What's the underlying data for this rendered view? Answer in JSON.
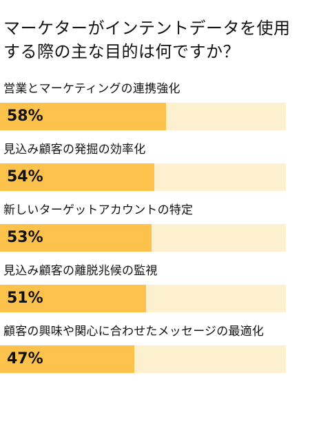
{
  "chart_data": {
    "type": "bar",
    "orientation": "horizontal",
    "title": "マーケターがインテントデータを使用する際の主な目的は何ですか？",
    "categories": [
      "営業とマーケティングの連携強化",
      "見込み顧客の発掘の効率化",
      "新しいターゲットアカウントの特定",
      "見込み顧客の離脱兆候の監視",
      "顧客の興味や関心に合わせたメッセージの最適化"
    ],
    "values": [
      58,
      54,
      53,
      51,
      47
    ],
    "value_labels": [
      "58%",
      "54%",
      "53%",
      "51%",
      "47%"
    ],
    "xlim": [
      0,
      100
    ],
    "xlabel": "",
    "ylabel": "",
    "grid": false,
    "legend": "none",
    "colors": {
      "bar": "#fcc24b",
      "track": "#fdf0cf",
      "text": "#111111"
    }
  }
}
